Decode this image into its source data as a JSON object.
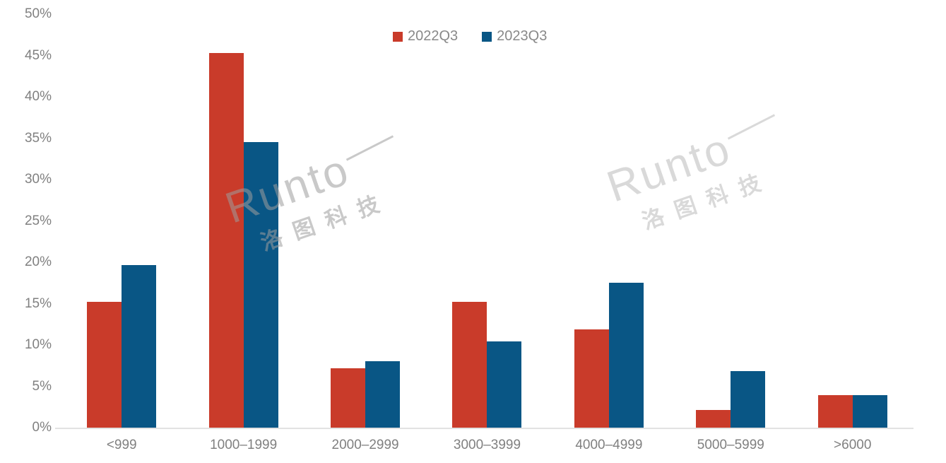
{
  "chart_data": {
    "type": "bar",
    "title": "",
    "categories": [
      "<999",
      "1000–1999",
      "2000–2999",
      "3000–3999",
      "4000–4999",
      "5000–5999",
      ">6000"
    ],
    "series": [
      {
        "name": "2022Q3",
        "color": "#C93B2A",
        "values": [
          15.2,
          45.3,
          7.2,
          15.2,
          11.9,
          2.1,
          3.9
        ]
      },
      {
        "name": "2023Q3",
        "color": "#095685",
        "values": [
          19.7,
          34.5,
          8.0,
          10.4,
          17.5,
          6.8,
          3.9
        ]
      }
    ],
    "xlabel": "",
    "ylabel": "",
    "ylim": [
      0,
      50
    ],
    "ytick_step": 5,
    "yticks": [
      "0%",
      "5%",
      "10%",
      "15%",
      "20%",
      "25%",
      "30%",
      "35%",
      "40%",
      "45%",
      "50%"
    ],
    "grid": false,
    "legend_position": "top-center"
  },
  "watermark": {
    "brand": "Runto",
    "brand_cn": "洛图科技"
  },
  "colors": {
    "axis_text": "#808080",
    "axis_line": "#E2E2E2",
    "legend_text": "#898989",
    "watermark": "#9E9E9E",
    "background": "#FFFFFF"
  }
}
